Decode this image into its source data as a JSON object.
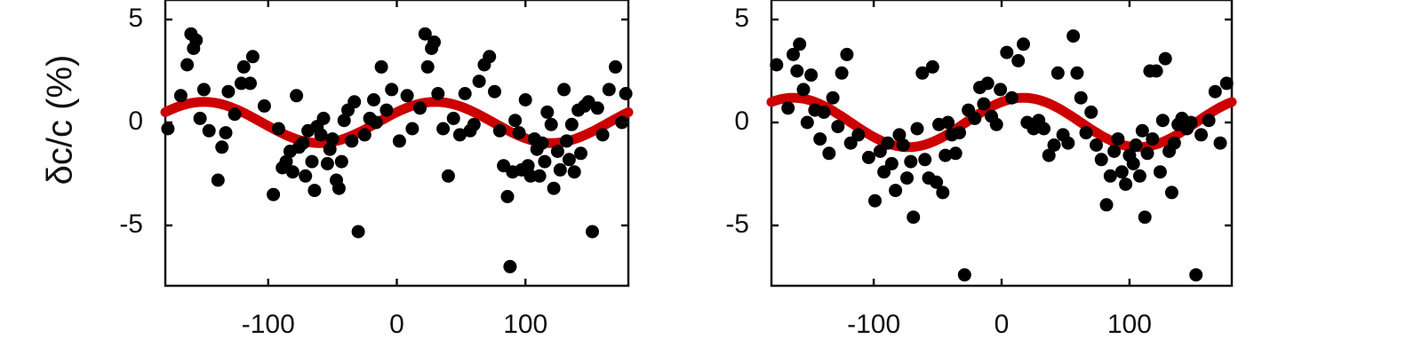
{
  "colors": {
    "points": "#000000",
    "fit": "#cc0000",
    "axes": "#111111"
  },
  "ylabel": "δc/c (%)",
  "chart_data": [
    {
      "type": "scatter",
      "xlim": [
        -180,
        180
      ],
      "ylim": [
        -8,
        6
      ],
      "xticks": [
        -100,
        0,
        100
      ],
      "yticks": [
        -5,
        0,
        5
      ],
      "xtick_labels": [
        "-100",
        "0",
        "100"
      ],
      "ytick_labels": [
        "-5",
        "0",
        "5"
      ],
      "fit": {
        "amplitude": 1.0,
        "period_deg": 180,
        "phase_deg": 30
      },
      "points": [
        [
          -178,
          -0.3
        ],
        [
          -168,
          1.3
        ],
        [
          -163,
          2.8
        ],
        [
          -160,
          4.3
        ],
        [
          -158,
          3.6
        ],
        [
          -156,
          4.0
        ],
        [
          -153,
          0.2
        ],
        [
          -150,
          1.6
        ],
        [
          -146,
          -0.4
        ],
        [
          -139,
          -2.8
        ],
        [
          -136,
          -1.2
        ],
        [
          -133,
          -0.5
        ],
        [
          -131,
          1.5
        ],
        [
          -126,
          0.4
        ],
        [
          -121,
          1.9
        ],
        [
          -119,
          2.7
        ],
        [
          -114,
          1.9
        ],
        [
          -112,
          3.2
        ],
        [
          -103,
          0.8
        ],
        [
          -96,
          -3.5
        ],
        [
          -92,
          -0.3
        ],
        [
          -89,
          -2.2
        ],
        [
          -86,
          -1.9
        ],
        [
          -83,
          -1.4
        ],
        [
          -81,
          -2.4
        ],
        [
          -78,
          1.3
        ],
        [
          -76,
          -1.2
        ],
        [
          -73,
          -1.0
        ],
        [
          -71,
          -2.6
        ],
        [
          -69,
          -0.4
        ],
        [
          -66,
          -1.9
        ],
        [
          -64,
          -3.3
        ],
        [
          -62,
          -0.2
        ],
        [
          -59,
          -0.6
        ],
        [
          -57,
          0.2
        ],
        [
          -54,
          -2.0
        ],
        [
          -52,
          -1.3
        ],
        [
          -50,
          -0.8
        ],
        [
          -47,
          -2.8
        ],
        [
          -45,
          -3.2
        ],
        [
          -43,
          -1.9
        ],
        [
          -41,
          0.1
        ],
        [
          -38,
          0.6
        ],
        [
          -35,
          -0.9
        ],
        [
          -33,
          1.0
        ],
        [
          -30,
          -5.3
        ],
        [
          -25,
          -0.6
        ],
        [
          -21,
          0.2
        ],
        [
          -18,
          1.1
        ],
        [
          -16,
          0.0
        ],
        [
          -12,
          2.7
        ],
        [
          -8,
          0.6
        ],
        [
          -4,
          1.6
        ],
        [
          2,
          -0.9
        ],
        [
          8,
          1.3
        ],
        [
          12,
          -0.3
        ],
        [
          18,
          0.7
        ],
        [
          22,
          4.3
        ],
        [
          24,
          2.7
        ],
        [
          27,
          3.6
        ],
        [
          29,
          3.9
        ],
        [
          32,
          1.4
        ],
        [
          36,
          -0.3
        ],
        [
          40,
          -2.6
        ],
        [
          44,
          0.2
        ],
        [
          49,
          -0.6
        ],
        [
          53,
          1.4
        ],
        [
          57,
          -0.4
        ],
        [
          60,
          -0.1
        ],
        [
          64,
          2.0
        ],
        [
          68,
          2.8
        ],
        [
          72,
          3.2
        ],
        [
          76,
          1.5
        ],
        [
          80,
          -0.4
        ],
        [
          83,
          -2.1
        ],
        [
          86,
          -3.6
        ],
        [
          88,
          -7.0
        ],
        [
          90,
          -2.4
        ],
        [
          92,
          0.1
        ],
        [
          95,
          -0.5
        ],
        [
          97,
          -2.3
        ],
        [
          100,
          1.1
        ],
        [
          102,
          -2.1
        ],
        [
          104,
          -2.6
        ],
        [
          107,
          -0.8
        ],
        [
          109,
          -1.3
        ],
        [
          111,
          -2.6
        ],
        [
          113,
          -1.0
        ],
        [
          115,
          -1.9
        ],
        [
          117,
          0.5
        ],
        [
          120,
          -0.1
        ],
        [
          122,
          -3.2
        ],
        [
          125,
          -1.4
        ],
        [
          127,
          -2.3
        ],
        [
          130,
          1.6
        ],
        [
          132,
          -0.9
        ],
        [
          134,
          -1.8
        ],
        [
          136,
          -0.1
        ],
        [
          138,
          -2.4
        ],
        [
          141,
          0.6
        ],
        [
          143,
          -1.5
        ],
        [
          146,
          0.8
        ],
        [
          149,
          1.0
        ],
        [
          152,
          -5.3
        ],
        [
          156,
          0.7
        ],
        [
          160,
          -0.6
        ],
        [
          165,
          1.6
        ],
        [
          170,
          2.7
        ],
        [
          175,
          0.0
        ],
        [
          178,
          1.4
        ]
      ]
    },
    {
      "type": "scatter",
      "xlim": [
        -180,
        180
      ],
      "ylim": [
        -8,
        6
      ],
      "xticks": [
        -100,
        0,
        100
      ],
      "yticks": [
        -5,
        0,
        5
      ],
      "xtick_labels": [
        "-100",
        "0",
        "100"
      ],
      "ytick_labels": [
        "-5",
        "0",
        "5"
      ],
      "fit": {
        "amplitude": 1.2,
        "period_deg": 180,
        "phase_deg": 17
      },
      "points": [
        [
          -176,
          2.8
        ],
        [
          -167,
          0.7
        ],
        [
          -163,
          3.3
        ],
        [
          -160,
          2.5
        ],
        [
          -158,
          3.8
        ],
        [
          -155,
          1.6
        ],
        [
          -152,
          0.0
        ],
        [
          -149,
          2.3
        ],
        [
          -146,
          0.6
        ],
        [
          -142,
          -0.8
        ],
        [
          -139,
          0.5
        ],
        [
          -135,
          -1.5
        ],
        [
          -132,
          1.2
        ],
        [
          -128,
          -0.2
        ],
        [
          -125,
          2.4
        ],
        [
          -121,
          3.3
        ],
        [
          -118,
          -1.0
        ],
        [
          -112,
          -0.6
        ],
        [
          -104,
          -1.7
        ],
        [
          -99,
          -3.8
        ],
        [
          -95,
          -1.4
        ],
        [
          -92,
          -2.4
        ],
        [
          -89,
          -1.0
        ],
        [
          -86,
          -2.0
        ],
        [
          -83,
          -3.3
        ],
        [
          -80,
          -0.6
        ],
        [
          -77,
          -1.1
        ],
        [
          -74,
          -2.7
        ],
        [
          -71,
          -1.9
        ],
        [
          -69,
          -4.6
        ],
        [
          -66,
          -0.3
        ],
        [
          -62,
          2.4
        ],
        [
          -60,
          -1.8
        ],
        [
          -57,
          -2.7
        ],
        [
          -54,
          2.7
        ],
        [
          -51,
          -2.9
        ],
        [
          -49,
          -0.1
        ],
        [
          -46,
          -3.4
        ],
        [
          -44,
          -1.6
        ],
        [
          -42,
          0.0
        ],
        [
          -39,
          -0.6
        ],
        [
          -36,
          -1.5
        ],
        [
          -33,
          -0.5
        ],
        [
          -29,
          -7.4
        ],
        [
          -26,
          0.6
        ],
        [
          -21,
          0.2
        ],
        [
          -17,
          1.7
        ],
        [
          -14,
          0.9
        ],
        [
          -11,
          1.9
        ],
        [
          -8,
          0.3
        ],
        [
          -4,
          -0.1
        ],
        [
          -1,
          1.6
        ],
        [
          4,
          3.4
        ],
        [
          8,
          1.2
        ],
        [
          13,
          3.0
        ],
        [
          17,
          3.8
        ],
        [
          20,
          0.0
        ],
        [
          25,
          -0.3
        ],
        [
          29,
          0.1
        ],
        [
          33,
          -0.3
        ],
        [
          37,
          -1.6
        ],
        [
          41,
          -1.1
        ],
        [
          44,
          2.4
        ],
        [
          48,
          -0.6
        ],
        [
          52,
          -1.0
        ],
        [
          56,
          4.2
        ],
        [
          59,
          2.4
        ],
        [
          62,
          1.2
        ],
        [
          66,
          -0.5
        ],
        [
          70,
          0.5
        ],
        [
          74,
          -1.1
        ],
        [
          78,
          -1.8
        ],
        [
          82,
          -4.0
        ],
        [
          85,
          -2.6
        ],
        [
          88,
          -1.4
        ],
        [
          91,
          -0.8
        ],
        [
          94,
          -2.4
        ],
        [
          97,
          -3.0
        ],
        [
          100,
          -1.6
        ],
        [
          103,
          -2.0
        ],
        [
          105,
          -1.1
        ],
        [
          108,
          -2.6
        ],
        [
          110,
          -0.4
        ],
        [
          112,
          -4.6
        ],
        [
          114,
          -1.5
        ],
        [
          116,
          2.5
        ],
        [
          118,
          -0.8
        ],
        [
          121,
          2.5
        ],
        [
          124,
          -2.4
        ],
        [
          126,
          0.1
        ],
        [
          128,
          3.1
        ],
        [
          131,
          -1.4
        ],
        [
          133,
          -3.4
        ],
        [
          135,
          -1.0
        ],
        [
          138,
          -0.1
        ],
        [
          141,
          0.2
        ],
        [
          145,
          -0.3
        ],
        [
          148,
          0.0
        ],
        [
          152,
          -7.4
        ],
        [
          156,
          -0.6
        ],
        [
          162,
          0.1
        ],
        [
          167,
          1.5
        ],
        [
          171,
          -1.0
        ],
        [
          176,
          1.9
        ]
      ]
    }
  ]
}
